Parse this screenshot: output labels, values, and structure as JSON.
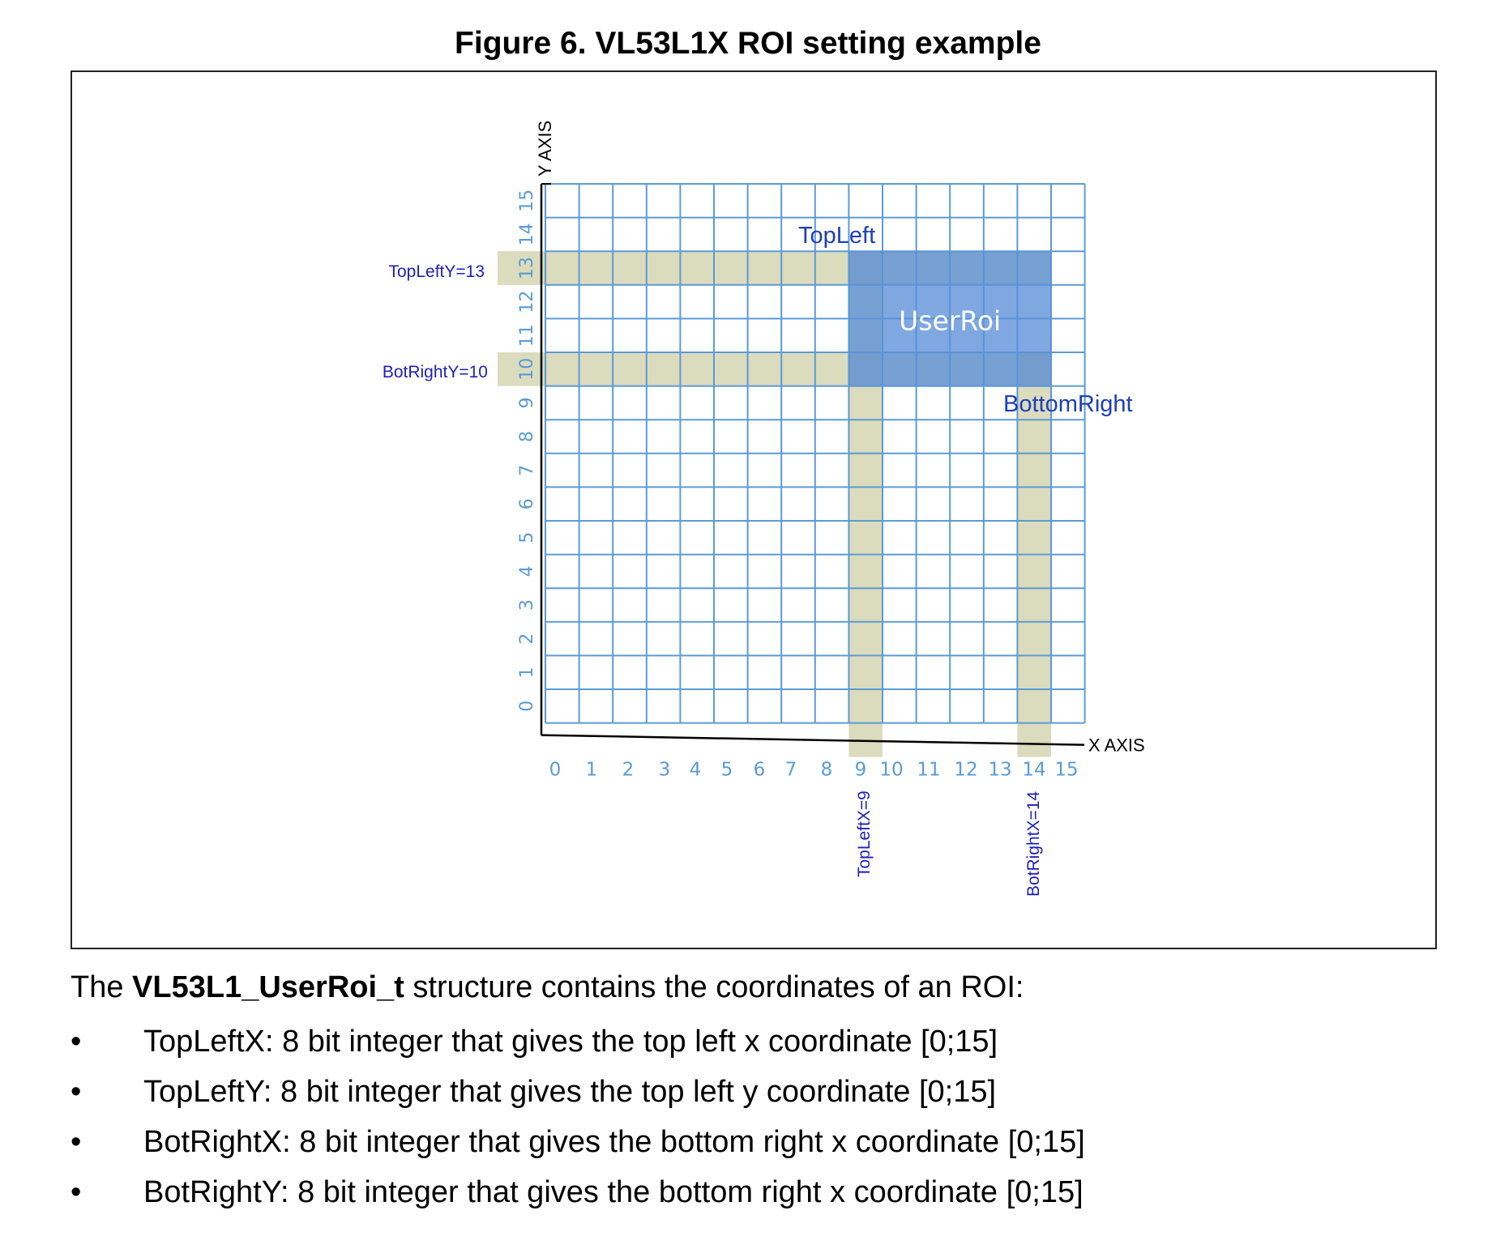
{
  "figure": {
    "title": "Figure 6. VL53L1X ROI setting example",
    "grid": {
      "size": 16,
      "x_axis_label": "X AXIS",
      "y_axis_label": "Y AXIS",
      "x_ticks": [
        "0",
        "1",
        "2",
        "3",
        "4",
        "5",
        "6",
        "7",
        "8",
        "9",
        "10",
        "11",
        "12",
        "13",
        "14",
        "15"
      ],
      "y_ticks": [
        "0",
        "1",
        "2",
        "3",
        "4",
        "5",
        "6",
        "7",
        "8",
        "9",
        "10",
        "11",
        "12",
        "13",
        "14",
        "15"
      ],
      "grid_color": "#5b9bd5",
      "tick_color": "#5b9bd5",
      "roi_color": "#5b8fd8",
      "highlight_color": "#c8c89a",
      "label_color": "#1f1fb8"
    },
    "roi": {
      "top_left_x": 9,
      "top_left_y": 13,
      "bot_right_x": 14,
      "bot_right_y": 10,
      "label": "UserRoi",
      "top_left_label": "TopLeft",
      "bottom_right_label": "BottomRight"
    },
    "annotations": {
      "top_left_y": "TopLeftY=13",
      "bot_right_y": "BotRightY=10",
      "top_left_x": "TopLeftX=9",
      "bot_right_x": "BotRightX=14"
    }
  },
  "description": {
    "intro_prefix": "The ",
    "intro_bold": "VL53L1_UserRoi_t",
    "intro_suffix": " structure contains the coordinates of an ROI:",
    "bullet_symbol": "•",
    "items": [
      "TopLeftX: 8 bit integer that gives the top left x coordinate [0;15]",
      "TopLeftY: 8 bit integer that gives the top left y coordinate [0;15]",
      "BotRightX: 8 bit integer that gives the bottom right x coordinate [0;15]",
      "BotRightY: 8 bit integer that gives the bottom right x coordinate [0;15]"
    ]
  }
}
